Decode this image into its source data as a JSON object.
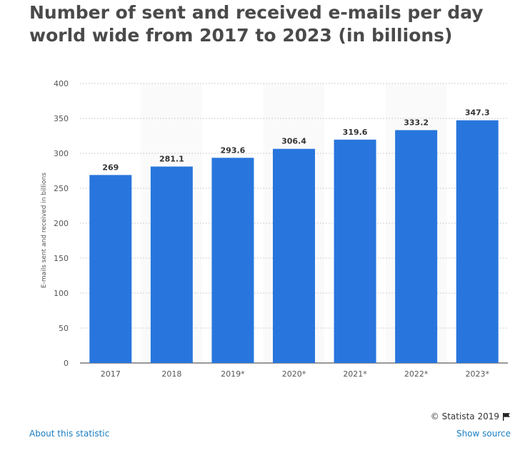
{
  "chart_data": {
    "type": "bar",
    "title": "Number of sent and received e-mails per day world wide from 2017 to 2023 (in billions)",
    "xlabel": "",
    "ylabel": "E-mails sent and received in billions",
    "categories": [
      "2017",
      "2018",
      "2019*",
      "2020*",
      "2021*",
      "2022*",
      "2023*"
    ],
    "values": [
      269,
      281.1,
      293.6,
      306.4,
      319.6,
      333.2,
      347.3
    ],
    "value_labels": [
      "269",
      "281.1",
      "293.6",
      "306.4",
      "319.6",
      "333.2",
      "347.3"
    ],
    "ylim": [
      0,
      400
    ],
    "yticks": [
      "0",
      "50",
      "100",
      "150",
      "200",
      "250",
      "300",
      "350",
      "400"
    ],
    "grid": true,
    "bar_color": "#2876dd"
  },
  "footer": {
    "copyright": "© Statista 2019",
    "about_link": "About this statistic",
    "source_link": "Show source"
  },
  "icons": {
    "flag": "flag-icon"
  }
}
